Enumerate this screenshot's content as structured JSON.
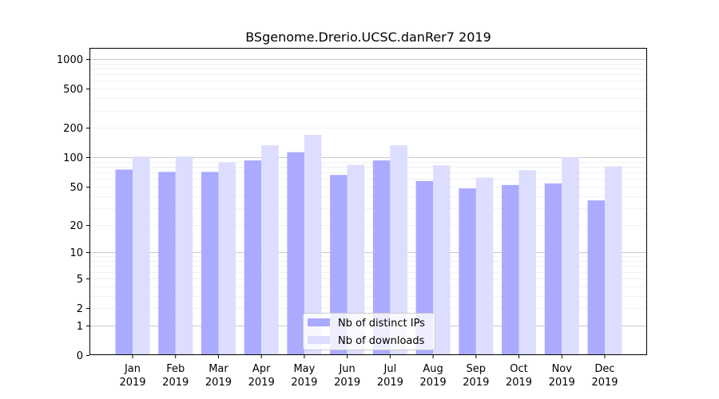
{
  "chart_data": {
    "type": "bar",
    "title": "BSgenome.Drerio.UCSC.danRer7 2019",
    "xlabel": "",
    "ylabel": "",
    "yscale": "log1p",
    "ylim": [
      0,
      1300
    ],
    "y_ticks": [
      0,
      1,
      2,
      5,
      10,
      20,
      50,
      100,
      200,
      500,
      1000
    ],
    "y_tick_labels": [
      "0",
      "1",
      "2",
      "5",
      "10",
      "20",
      "50",
      "100",
      "200",
      "500",
      "1000"
    ],
    "grid": true,
    "legend_position": "bottom-center",
    "categories": [
      [
        "Jan",
        "2019"
      ],
      [
        "Feb",
        "2019"
      ],
      [
        "Mar",
        "2019"
      ],
      [
        "Apr",
        "2019"
      ],
      [
        "May",
        "2019"
      ],
      [
        "Jun",
        "2019"
      ],
      [
        "Jul",
        "2019"
      ],
      [
        "Aug",
        "2019"
      ],
      [
        "Sep",
        "2019"
      ],
      [
        "Oct",
        "2019"
      ],
      [
        "Nov",
        "2019"
      ],
      [
        "Dec",
        "2019"
      ]
    ],
    "series": [
      {
        "name": "Nb of distinct IPs",
        "color": "#aaaaff",
        "values": [
          75,
          71,
          71,
          93,
          113,
          66,
          93,
          57,
          48,
          52,
          54,
          36
        ]
      },
      {
        "name": "Nb of downloads",
        "color": "#ddddff",
        "values": [
          102,
          102,
          89,
          133,
          170,
          84,
          133,
          83,
          62,
          74,
          100,
          81
        ]
      }
    ]
  }
}
